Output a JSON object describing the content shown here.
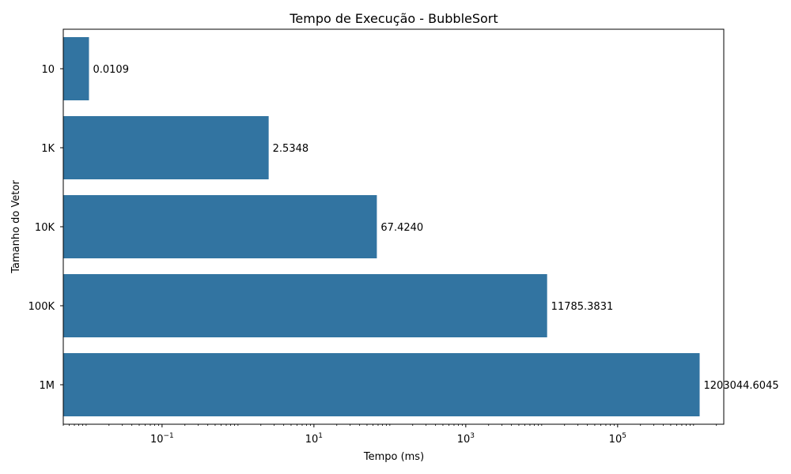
{
  "chart_data": {
    "type": "bar",
    "orientation": "horizontal",
    "title": "Tempo de Execução - BubbleSort",
    "xlabel": "Tempo (ms)",
    "ylabel": "Tamanho do Vetor",
    "xscale": "log",
    "xlim": [
      0.005,
      2500000
    ],
    "categories": [
      "10",
      "1K",
      "10K",
      "100K",
      "1M"
    ],
    "values": [
      0.0109,
      2.5348,
      67.424,
      11785.3831,
      1203044.6045
    ],
    "value_labels": [
      "0.0109",
      "2.5348",
      "67.4240",
      "11785.3831",
      "1203044.6045"
    ],
    "x_ticks": [
      {
        "base": "10",
        "exp": "−1",
        "value": 0.1
      },
      {
        "base": "10",
        "exp": "1",
        "value": 10
      },
      {
        "base": "10",
        "exp": "3",
        "value": 1000
      },
      {
        "base": "10",
        "exp": "5",
        "value": 100000
      }
    ],
    "bar_color": "#3274a1",
    "grid": false,
    "legend": "none"
  }
}
